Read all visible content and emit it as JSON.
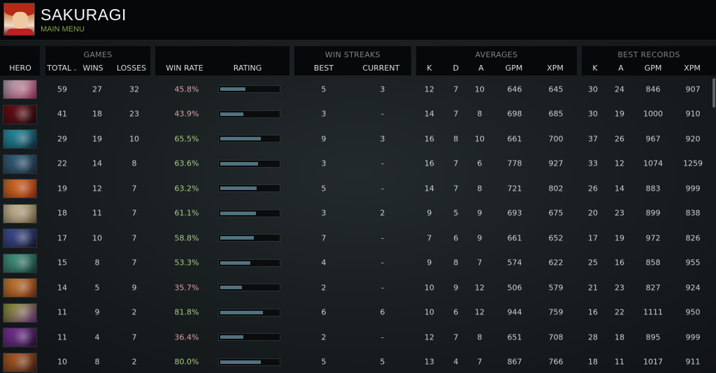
{
  "profile": {
    "name": "SAKURAGI",
    "menu_link": "MAIN MENU"
  },
  "groups": {
    "games": "GAMES",
    "win_streaks": "WIN STREAKS",
    "averages": "AVERAGES",
    "best_records": "BEST RECORDS"
  },
  "columns": {
    "hero": "HERO",
    "total": "TOTAL",
    "wins": "WINS",
    "losses": "LOSSES",
    "win_rate": "WIN RATE",
    "rating": "RATING",
    "best": "BEST",
    "current": "CURRENT",
    "avg_k": "K",
    "avg_d": "D",
    "avg_a": "A",
    "avg_gpm": "GPM",
    "avg_xpm": "XPM",
    "best_k": "K",
    "best_a": "A",
    "best_gpm": "GPM",
    "best_xpm": "XPM"
  },
  "rows": [
    {
      "portrait_colors": [
        "#c8b9c4",
        "#8b2f4f"
      ],
      "total": "59",
      "wins": "27",
      "losses": "32",
      "win_rate": "45.8%",
      "rating": 0.43,
      "best": "5",
      "current": "3",
      "k": "12",
      "d": "7",
      "a": "10",
      "gpm": "646",
      "xpm": "645",
      "bk": "30",
      "ba": "24",
      "bgpm": "846",
      "bxpm": "907"
    },
    {
      "portrait_colors": [
        "#7a1018",
        "#1f0a0d"
      ],
      "total": "41",
      "wins": "18",
      "losses": "23",
      "win_rate": "43.9%",
      "rating": 0.4,
      "best": "3",
      "current": "-",
      "k": "14",
      "d": "7",
      "a": "8",
      "gpm": "698",
      "xpm": "685",
      "bk": "30",
      "ba": "19",
      "bgpm": "1000",
      "bxpm": "910"
    },
    {
      "portrait_colors": [
        "#2ea3b8",
        "#0b2a3a"
      ],
      "total": "29",
      "wins": "19",
      "losses": "10",
      "win_rate": "65.5%",
      "rating": 0.7,
      "best": "9",
      "current": "3",
      "k": "16",
      "d": "8",
      "a": "10",
      "gpm": "661",
      "xpm": "700",
      "bk": "37",
      "ba": "26",
      "bgpm": "967",
      "bxpm": "920"
    },
    {
      "portrait_colors": [
        "#3b6c8c",
        "#182a38"
      ],
      "total": "22",
      "wins": "14",
      "losses": "8",
      "win_rate": "63.6%",
      "rating": 0.65,
      "best": "3",
      "current": "-",
      "k": "16",
      "d": "7",
      "a": "6",
      "gpm": "778",
      "xpm": "927",
      "bk": "33",
      "ba": "12",
      "bgpm": "1074",
      "bxpm": "1259"
    },
    {
      "portrait_colors": [
        "#e07a2a",
        "#8a2a10"
      ],
      "total": "19",
      "wins": "12",
      "losses": "7",
      "win_rate": "63.2%",
      "rating": 0.63,
      "best": "5",
      "current": "-",
      "k": "14",
      "d": "7",
      "a": "8",
      "gpm": "721",
      "xpm": "802",
      "bk": "26",
      "ba": "14",
      "bgpm": "883",
      "bxpm": "999"
    },
    {
      "portrait_colors": [
        "#d8c9a8",
        "#6a5a3a"
      ],
      "total": "18",
      "wins": "11",
      "losses": "7",
      "win_rate": "61.1%",
      "rating": 0.61,
      "best": "3",
      "current": "2",
      "k": "9",
      "d": "5",
      "a": "9",
      "gpm": "693",
      "xpm": "675",
      "bk": "20",
      "ba": "23",
      "bgpm": "899",
      "bxpm": "838"
    },
    {
      "portrait_colors": [
        "#4a5aa8",
        "#14182e"
      ],
      "total": "17",
      "wins": "10",
      "losses": "7",
      "win_rate": "58.8%",
      "rating": 0.58,
      "best": "7",
      "current": "-",
      "k": "7",
      "d": "6",
      "a": "9",
      "gpm": "661",
      "xpm": "652",
      "bk": "17",
      "ba": "19",
      "bgpm": "972",
      "bxpm": "826"
    },
    {
      "portrait_colors": [
        "#4aa890",
        "#173a30"
      ],
      "total": "15",
      "wins": "8",
      "losses": "7",
      "win_rate": "53.3%",
      "rating": 0.52,
      "best": "4",
      "current": "-",
      "k": "9",
      "d": "8",
      "a": "7",
      "gpm": "574",
      "xpm": "622",
      "bk": "25",
      "ba": "16",
      "bgpm": "858",
      "bxpm": "955"
    },
    {
      "portrait_colors": [
        "#d88a3a",
        "#6a2a10"
      ],
      "total": "14",
      "wins": "5",
      "losses": "9",
      "win_rate": "35.7%",
      "rating": 0.37,
      "best": "2",
      "current": "-",
      "k": "10",
      "d": "9",
      "a": "12",
      "gpm": "506",
      "xpm": "579",
      "bk": "21",
      "ba": "23",
      "bgpm": "827",
      "bxpm": "924"
    },
    {
      "portrait_colors": [
        "#9aa83a",
        "#5a2a6a"
      ],
      "total": "11",
      "wins": "9",
      "losses": "2",
      "win_rate": "81.8%",
      "rating": 0.74,
      "best": "6",
      "current": "6",
      "k": "10",
      "d": "6",
      "a": "12",
      "gpm": "944",
      "xpm": "759",
      "bk": "16",
      "ba": "22",
      "bgpm": "1111",
      "bxpm": "950"
    },
    {
      "portrait_colors": [
        "#8a3aa8",
        "#241030"
      ],
      "total": "11",
      "wins": "4",
      "losses": "7",
      "win_rate": "36.4%",
      "rating": 0.4,
      "best": "2",
      "current": "-",
      "k": "12",
      "d": "7",
      "a": "8",
      "gpm": "651",
      "xpm": "708",
      "bk": "28",
      "ba": "18",
      "bgpm": "895",
      "bxpm": "999"
    },
    {
      "portrait_colors": [
        "#c8682a",
        "#3a1a10"
      ],
      "total": "10",
      "wins": "8",
      "losses": "2",
      "win_rate": "80.0%",
      "rating": 0.7,
      "best": "5",
      "current": "5",
      "k": "13",
      "d": "4",
      "a": "7",
      "gpm": "867",
      "xpm": "766",
      "bk": "18",
      "ba": "11",
      "bgpm": "1017",
      "bxpm": "911"
    }
  ]
}
